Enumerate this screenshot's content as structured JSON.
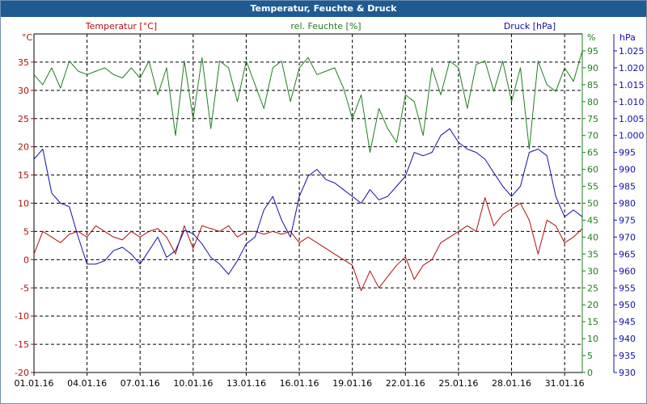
{
  "window": {
    "title": "Temperatur, Feuchte & Druck"
  },
  "colors": {
    "temperature": "#b01010",
    "humidity": "#1f7f1f",
    "pressure": "#1010a8",
    "grid": "#000000",
    "title_bar": "#1f5a93"
  },
  "chart_data": {
    "type": "line",
    "title": "Temperatur, Feuchte & Druck",
    "grid": true,
    "xlim": [
      "01.01.16",
      "01.02.16"
    ],
    "x_ticks": [
      "01.01.16",
      "04.01.16",
      "07.01.16",
      "10.01.16",
      "13.01.16",
      "16.01.16",
      "19.01.16",
      "22.01.16",
      "25.01.16",
      "28.01.16",
      "31.01.16"
    ],
    "axes": {
      "temperature": {
        "unit": "°C",
        "label": "Temperatur [°C]",
        "min": -20,
        "max": 40,
        "ticks": [
          -20,
          -15,
          -10,
          -5,
          0,
          5,
          10,
          15,
          20,
          25,
          30,
          35
        ]
      },
      "humidity": {
        "unit": "%",
        "label": "rel. Feuchte [%]",
        "min": 0,
        "max": 100,
        "ticks": [
          0,
          5,
          10,
          15,
          20,
          25,
          30,
          35,
          40,
          45,
          50,
          55,
          60,
          65,
          70,
          75,
          80,
          85,
          90,
          95
        ]
      },
      "pressure": {
        "unit": "hPa",
        "label": "Druck [hPa]",
        "min": 930,
        "max": 1030,
        "ticks": [
          "930",
          "935",
          "940",
          "945",
          "950",
          "955",
          "960",
          "965",
          "970",
          "975",
          "980",
          "985",
          "990",
          "995",
          "1.000",
          "1.005",
          "1.010",
          "1.015",
          "1.020",
          "1.025"
        ]
      }
    },
    "series": [
      {
        "name": "Temperatur [°C]",
        "axis": "temperature",
        "x": [
          0,
          0.5,
          1,
          1.5,
          2,
          2.5,
          3,
          3.5,
          4,
          4.5,
          5,
          5.5,
          6,
          6.5,
          7,
          7.5,
          8,
          8.5,
          9,
          9.5,
          10,
          10.5,
          11,
          11.5,
          12,
          12.5,
          13,
          13.5,
          14,
          14.5,
          15,
          15.5,
          16,
          16.5,
          17,
          17.5,
          18,
          18.5,
          19,
          19.5,
          20,
          20.5,
          21,
          21.5,
          22,
          22.5,
          23,
          23.5,
          24,
          24.5,
          25,
          25.5,
          26,
          26.5,
          27,
          27.5,
          28,
          28.5,
          29,
          29.5,
          30,
          30.5,
          31
        ],
        "values": [
          1,
          5,
          4,
          3,
          4.5,
          5,
          4,
          6,
          5,
          4,
          3.5,
          5,
          4,
          5,
          5.5,
          4,
          1,
          6,
          2,
          6,
          5.5,
          5,
          6,
          4,
          5,
          5,
          4.5,
          5,
          4.5,
          5,
          3,
          4,
          3,
          2,
          1,
          0,
          -1,
          -5.5,
          -2,
          -5,
          -3,
          -1,
          0.5,
          -3.5,
          -1,
          0,
          3,
          4,
          5,
          6,
          5,
          11,
          6,
          8,
          9,
          10,
          7,
          1,
          7,
          6,
          3,
          4,
          5.5
        ]
      },
      {
        "name": "rel. Feuchte [%]",
        "axis": "humidity",
        "x": [
          0,
          0.5,
          1,
          1.5,
          2,
          2.5,
          3,
          3.5,
          4,
          4.5,
          5,
          5.5,
          6,
          6.5,
          7,
          7.5,
          8,
          8.5,
          9,
          9.5,
          10,
          10.5,
          11,
          11.5,
          12,
          12.5,
          13,
          13.5,
          14,
          14.5,
          15,
          15.5,
          16,
          16.5,
          17,
          17.5,
          18,
          18.5,
          19,
          19.5,
          20,
          20.5,
          21,
          21.5,
          22,
          22.5,
          23,
          23.5,
          24,
          24.5,
          25,
          25.5,
          26,
          26.5,
          27,
          27.5,
          28,
          28.5,
          29,
          29.5,
          30,
          30.5,
          31
        ],
        "values": [
          88,
          85,
          90,
          84,
          92,
          89,
          88,
          89,
          90,
          88,
          87,
          90,
          87,
          92,
          82,
          90,
          70,
          92,
          75,
          93,
          72,
          92,
          90,
          80,
          92,
          85,
          78,
          90,
          92,
          80,
          90,
          93,
          88,
          89,
          90,
          84,
          75,
          82,
          65,
          78,
          72,
          68,
          82,
          80,
          70,
          90,
          82,
          92,
          90,
          78,
          91,
          92,
          83,
          92,
          80,
          90,
          66,
          92,
          85,
          83,
          90,
          86,
          95
        ]
      },
      {
        "name": "Druck [hPa]",
        "axis": "pressure",
        "x": [
          0,
          0.5,
          1,
          1.5,
          2,
          2.5,
          3,
          3.5,
          4,
          4.5,
          5,
          5.5,
          6,
          6.5,
          7,
          7.5,
          8,
          8.5,
          9,
          9.5,
          10,
          10.5,
          11,
          11.5,
          12,
          12.5,
          13,
          13.5,
          14,
          14.5,
          15,
          15.5,
          16,
          16.5,
          17,
          17.5,
          18,
          18.5,
          19,
          19.5,
          20,
          20.5,
          21,
          21.5,
          22,
          22.5,
          23,
          23.5,
          24,
          24.5,
          25,
          25.5,
          26,
          26.5,
          27,
          27.5,
          28,
          28.5,
          29,
          29.5,
          30,
          30.5,
          31
        ],
        "values": [
          993,
          996,
          983,
          980,
          979,
          970,
          962,
          962,
          963,
          966,
          967,
          965,
          962,
          966,
          970,
          964,
          966,
          972,
          971,
          968,
          964,
          962,
          959,
          963,
          968,
          970,
          978,
          982,
          975,
          970,
          982,
          988,
          990,
          987,
          986,
          984,
          982,
          980,
          984,
          981,
          982,
          985,
          988,
          995,
          994,
          995,
          1000,
          1002,
          998,
          996,
          995,
          993,
          989,
          985,
          982,
          985,
          995,
          996,
          994,
          982,
          976,
          978,
          976
        ]
      }
    ]
  }
}
